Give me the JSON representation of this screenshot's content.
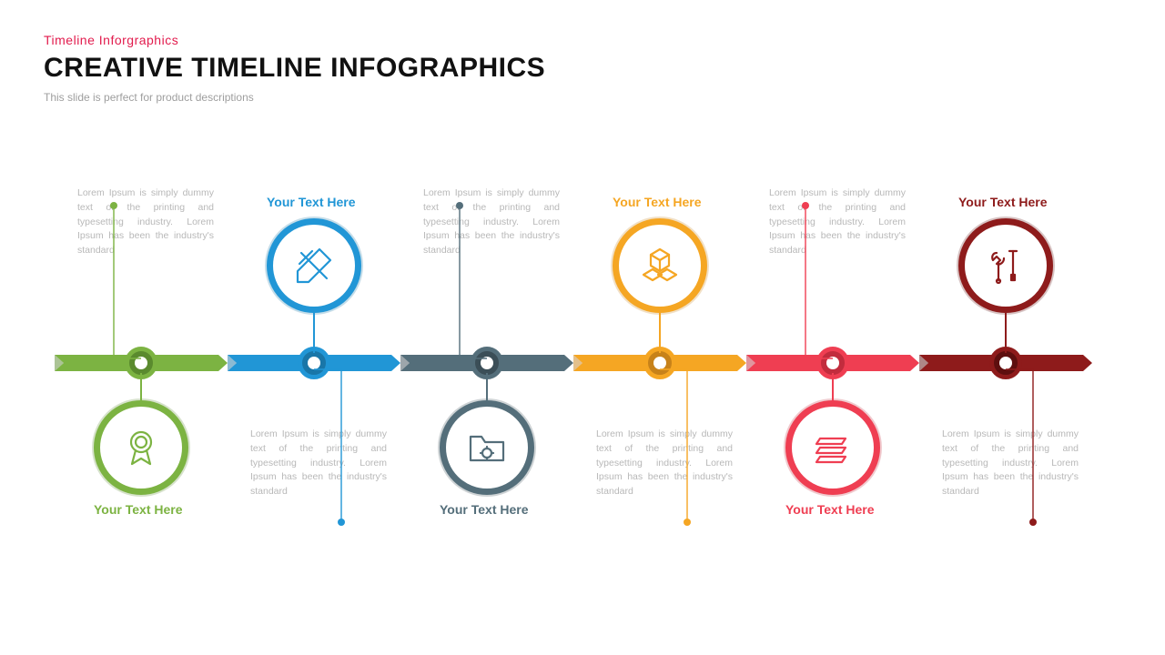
{
  "header": {
    "eyebrow": "Timeline  Inforgraphics",
    "eyebrow_color": "#e21b4d",
    "title": "CREATIVE TIMELINE INFOGRAPHICS",
    "title_color": "#111111",
    "subtitle": "This slide is perfect for product descriptions"
  },
  "timeline": {
    "type": "infographic",
    "background_color": "#ffffff",
    "arrow_height": 18,
    "segment_width": 190,
    "items": [
      {
        "color": "#7cb342",
        "color_dark": "#5a8a2e",
        "label": "Your Text Here",
        "body": "Lorem Ipsum is simply dummy text of the printing and typesetting industry. Lorem Ipsum has been the industry's standard",
        "icon": "award",
        "circle_pos": "below",
        "text_pos": "above"
      },
      {
        "color": "#2196d6",
        "color_dark": "#1976a8",
        "label": "Your Text Here",
        "body": "Lorem Ipsum is simply dummy text of the printing and typesetting industry. Lorem Ipsum has been the industry's standard",
        "icon": "design",
        "circle_pos": "above",
        "text_pos": "below"
      },
      {
        "color": "#546e7a",
        "color_dark": "#3b4e57",
        "label": "Your Text Here",
        "body": "Lorem Ipsum is simply dummy text of the printing and typesetting industry. Lorem Ipsum has been the industry's standard",
        "icon": "folder",
        "circle_pos": "below",
        "text_pos": "above"
      },
      {
        "color": "#f5a623",
        "color_dark": "#c7821a",
        "label": "Your Text Here",
        "body": "Lorem Ipsum is simply dummy text of the printing and typesetting industry. Lorem Ipsum has been the industry's standard",
        "icon": "cubes",
        "circle_pos": "above",
        "text_pos": "below"
      },
      {
        "color": "#ef3e52",
        "color_dark": "#c22c3d",
        "label": "Your Text Here",
        "body": "Lorem Ipsum is simply dummy text of the printing and typesetting industry. Lorem Ipsum has been the industry's standard",
        "icon": "stack",
        "circle_pos": "below",
        "text_pos": "above"
      },
      {
        "color": "#8e1b1b",
        "color_dark": "#5e0f0f",
        "label": "Your Text Here",
        "body": "Lorem Ipsum is simply dummy text of the printing and typesetting industry. Lorem Ipsum has been the industry's standard",
        "icon": "tools",
        "circle_pos": "above",
        "text_pos": "below"
      }
    ]
  }
}
